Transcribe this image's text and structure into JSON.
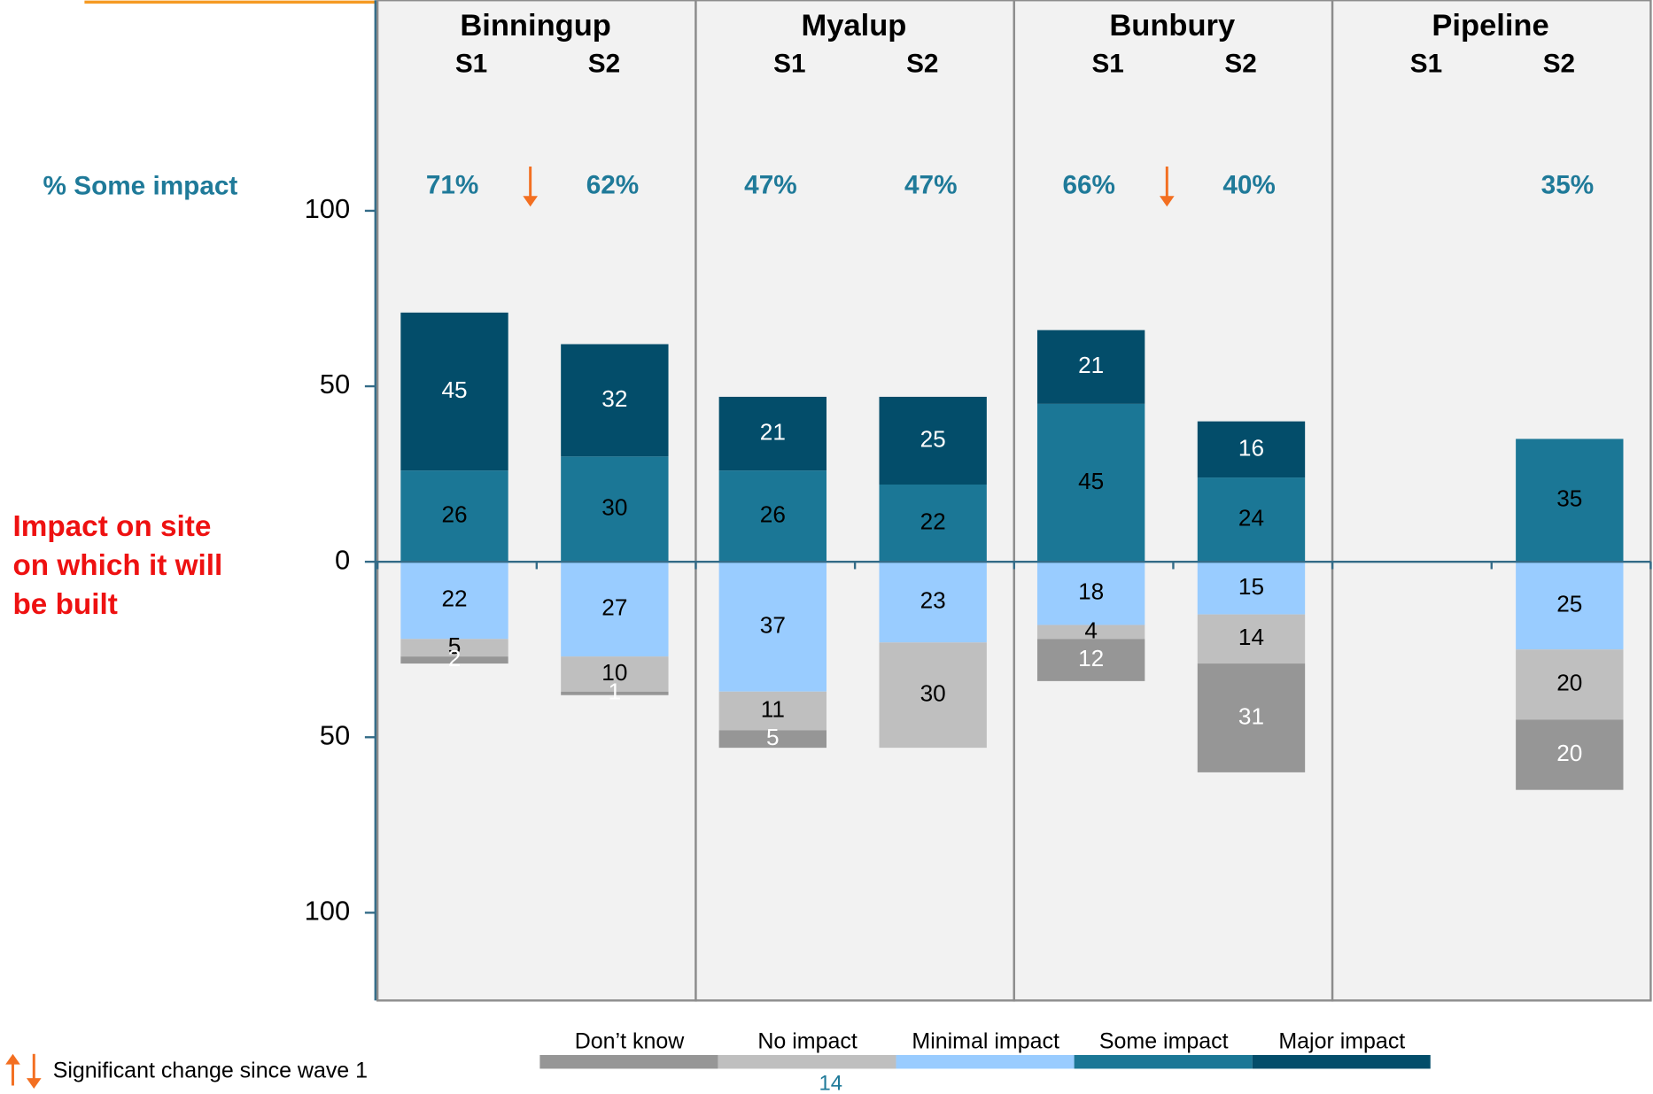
{
  "chart_data": {
    "type": "diverging_stacked_bar",
    "groups": [
      "Binningup",
      "Myalup",
      "Bunbury",
      "Pipeline"
    ],
    "categories": [
      "S1",
      "S2",
      "S1",
      "S2",
      "S1",
      "S2",
      "S1",
      "S2"
    ],
    "series": [
      {
        "name": "Don’t know",
        "color": "#969696",
        "label_color": "#ffffff",
        "values": [
          -2,
          -1,
          -5,
          null,
          -12,
          -31,
          null,
          -20
        ],
        "value_labels": [
          "2",
          "1",
          "5",
          null,
          "12",
          "31",
          null,
          "20"
        ]
      },
      {
        "name": "No impact",
        "color": "#bfbfbf",
        "label_color": "#000000",
        "values": [
          -5,
          -10,
          -11,
          -30,
          -4,
          -14,
          null,
          -20
        ],
        "value_labels": [
          "5",
          "10",
          "11",
          "30",
          "4",
          "14",
          null,
          "20"
        ]
      },
      {
        "name": "Minimal impact",
        "color": "#99ccff",
        "label_color": "#000000",
        "values": [
          -22,
          -27,
          -37,
          -23,
          -18,
          -15,
          null,
          -25
        ],
        "value_labels": [
          "22",
          "27",
          "37",
          "23",
          "18",
          "15",
          null,
          "25"
        ]
      },
      {
        "name": "Some impact",
        "color": "#1b7796",
        "label_color": "#000000",
        "values": [
          26,
          30,
          26,
          22,
          45,
          24,
          null,
          35
        ]
      },
      {
        "name": "Major impact",
        "color": "#034d6a",
        "label_color": "#ffffff",
        "values": [
          45,
          32,
          21,
          25,
          21,
          16,
          null,
          null
        ]
      }
    ],
    "ylim": [
      -125,
      160
    ],
    "yticks": [
      100,
      50,
      0,
      {
        "value": -50,
        "label": "50"
      },
      {
        "value": -100,
        "label": "100"
      }
    ],
    "totals": {
      "label": "% Some impact",
      "values": [
        71,
        62,
        47,
        47,
        66,
        40,
        null,
        35
      ],
      "value_labels": [
        "71%",
        "62%",
        "47%",
        "47%",
        "66%",
        "40%",
        null,
        "35%"
      ],
      "significance": [
        null,
        "down",
        null,
        null,
        null,
        "down",
        null,
        null
      ]
    },
    "side_label": [
      "Impact on site",
      "on which it will",
      "be built"
    ],
    "footnote": "Significant change since wave 1",
    "page_number": "14"
  }
}
